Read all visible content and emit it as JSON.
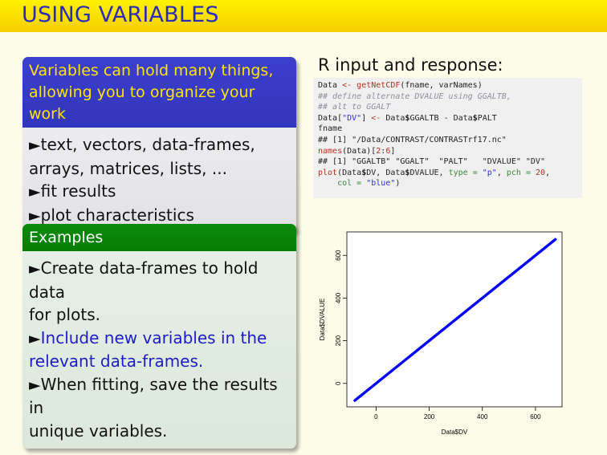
{
  "slide": {
    "title": "USING VARIABLES"
  },
  "left_block1": {
    "header_line1": "Variables can hold many things,",
    "header_line2": "allowing you to organize your work",
    "items": [
      "text, vectors, data-frames,",
      "arrays, matrices, lists, ...",
      "fit results",
      "plot characteristics"
    ],
    "bullet_glyph": "►"
  },
  "left_block2": {
    "header": "Examples",
    "item1_line1": "Create data-frames to hold data",
    "item1_line2": "for plots.",
    "item2_line1": "Include new variables in the",
    "item2_line2": "relevant data-frames.",
    "item3_line1": "When fitting, save the results in",
    "item3_line2": "unique variables.",
    "bullet_glyph": "►",
    "highlight_color": "#1d1dc8"
  },
  "right_panel": {
    "title": "R input and response:",
    "code": {
      "l1_a": "Data ",
      "l1_b": "<-",
      "l1_c": " getNetCDF",
      "l1_d": "(fname, varNames)",
      "l2": "## define alternate DVALUE using GGALTB,",
      "l3": "## alt to GGALT",
      "l4_a": "Data[",
      "l4_b": "\"DV\"",
      "l4_c": "] ",
      "l4_d": "<-",
      "l4_e": " Data",
      "l4_f": "$",
      "l4_g": "GGALTB - Data",
      "l4_h": "$",
      "l4_i": "PALT",
      "l5": "fname",
      "l6": "## [1] \"/Data/CONTRAST/CONTRASTrf17.nc\"",
      "l7_a": "names",
      "l7_b": "(Data)[",
      "l7_c": "2",
      "l7_d": ":",
      "l7_e": "6",
      "l7_f": "]",
      "l8": "## [1] \"GGALTB\" \"GGALT\"  \"PALT\"   \"DVALUE\" \"DV\"",
      "l9_a": "plot",
      "l9_b": "(Data",
      "l9_c": "$",
      "l9_d": "DV, Data",
      "l9_e": "$",
      "l9_f": "DVALUE, ",
      "l9_g": "type =",
      "l9_h": " ",
      "l9_i": "\"p\"",
      "l9_j": ", ",
      "l9_k": "pch =",
      "l9_l": " ",
      "l9_m": "20",
      "l9_n": ",",
      "l10_a": "    ",
      "l10_b": "col =",
      "l10_c": " ",
      "l10_d": "\"blue\"",
      "l10_e": ")"
    }
  },
  "chart_data": {
    "type": "scatter",
    "xlabel": "Data$DV",
    "ylabel": "Data$DVALUE",
    "x_ticks": [
      "0",
      "200",
      "400",
      "600"
    ],
    "y_ticks": [
      "0",
      "200",
      "400",
      "600"
    ],
    "xlim": [
      -110,
      700
    ],
    "ylim": [
      -110,
      710
    ],
    "series": [
      {
        "x": [
          -80,
          675
        ],
        "y": [
          -80,
          675
        ],
        "color": "#0000ff"
      }
    ],
    "grid": false
  }
}
